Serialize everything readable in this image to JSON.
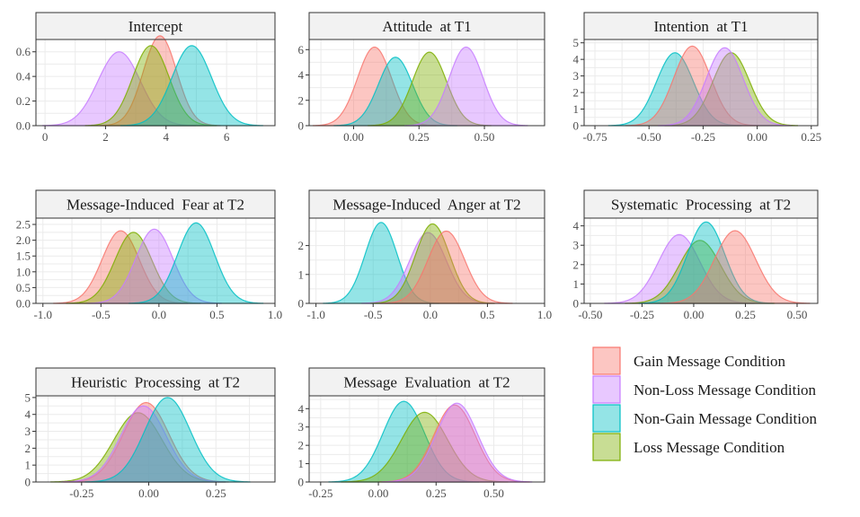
{
  "colors": {
    "gain": "#F8766D",
    "nonloss": "#C77CFF",
    "nongain": "#00BFC4",
    "loss": "#7CAE00",
    "panel_border": "#333333",
    "strip_fill": "#f2f2f2",
    "grid": "#ebebeb"
  },
  "legend": {
    "items": [
      {
        "key": "gain",
        "label": "Gain Message Condition"
      },
      {
        "key": "nonloss",
        "label": "Non-Loss Message Condition"
      },
      {
        "key": "nongain",
        "label": "Non-Gain Message Condition"
      },
      {
        "key": "loss",
        "label": "Loss Message Condition"
      }
    ]
  },
  "chart_data": [
    {
      "type": "area",
      "title": "Intercept",
      "xlim": [
        -0.3,
        7.6
      ],
      "ylim": [
        0,
        0.7
      ],
      "xticks": [
        0,
        2,
        4,
        6
      ],
      "xtick_labels": [
        "0",
        "2",
        "4",
        "6"
      ],
      "yticks": [
        0,
        0.2,
        0.4,
        0.6
      ],
      "ytick_labels": [
        "0.0",
        "0.2",
        "0.4",
        "0.6"
      ],
      "series": [
        {
          "key": "nonloss",
          "mean": 2.45,
          "sd": 0.7,
          "peak": 0.6
        },
        {
          "key": "gain",
          "mean": 3.8,
          "sd": 0.55,
          "peak": 0.73
        },
        {
          "key": "loss",
          "mean": 3.5,
          "sd": 0.6,
          "peak": 0.65
        },
        {
          "key": "nongain",
          "mean": 4.85,
          "sd": 0.65,
          "peak": 0.65
        }
      ]
    },
    {
      "type": "area",
      "title": "Attitude  at T1",
      "xlim": [
        -0.17,
        0.73
      ],
      "ylim": [
        0,
        6.8
      ],
      "xticks": [
        0,
        0.25,
        0.5
      ],
      "xtick_labels": [
        "0.00",
        "0.25",
        "0.50"
      ],
      "yticks": [
        0,
        2,
        4,
        6
      ],
      "ytick_labels": [
        "0",
        "2",
        "4",
        "6"
      ],
      "series": [
        {
          "key": "gain",
          "mean": 0.08,
          "sd": 0.065,
          "peak": 6.2
        },
        {
          "key": "nongain",
          "mean": 0.16,
          "sd": 0.065,
          "peak": 5.4
        },
        {
          "key": "loss",
          "mean": 0.29,
          "sd": 0.065,
          "peak": 5.8
        },
        {
          "key": "nonloss",
          "mean": 0.43,
          "sd": 0.065,
          "peak": 6.2
        }
      ]
    },
    {
      "type": "area",
      "title": "Intention  at T1",
      "xlim": [
        -0.8,
        0.28
      ],
      "ylim": [
        0,
        5.2
      ],
      "xticks": [
        -0.75,
        -0.5,
        -0.25,
        0,
        0.25
      ],
      "xtick_labels": [
        "-0.75",
        "-0.50",
        "-0.25",
        "0.00",
        "0.25"
      ],
      "yticks": [
        0,
        1,
        2,
        3,
        4,
        5
      ],
      "ytick_labels": [
        "0",
        "1",
        "2",
        "3",
        "4",
        "5"
      ],
      "series": [
        {
          "key": "nongain",
          "mean": -0.38,
          "sd": 0.085,
          "peak": 4.4
        },
        {
          "key": "gain",
          "mean": -0.3,
          "sd": 0.085,
          "peak": 4.8
        },
        {
          "key": "loss",
          "mean": -0.12,
          "sd": 0.085,
          "peak": 4.4
        },
        {
          "key": "nonloss",
          "mean": -0.15,
          "sd": 0.085,
          "peak": 4.7
        }
      ]
    },
    {
      "type": "area",
      "title": "Message-Induced  Fear at T2",
      "xlim": [
        -1.06,
        1.0
      ],
      "ylim": [
        0,
        2.7
      ],
      "xticks": [
        -1,
        -0.5,
        0,
        0.5,
        1
      ],
      "xtick_labels": [
        "-1.0",
        "-0.5",
        "0.0",
        "0.5",
        "1.0"
      ],
      "yticks": [
        0,
        0.5,
        1,
        1.5,
        2,
        2.5
      ],
      "ytick_labels": [
        "0.0",
        "0.5",
        "1.0",
        "1.5",
        "2.0",
        "2.5"
      ],
      "series": [
        {
          "key": "gain",
          "mean": -0.33,
          "sd": 0.16,
          "peak": 2.3
        },
        {
          "key": "loss",
          "mean": -0.22,
          "sd": 0.16,
          "peak": 2.25
        },
        {
          "key": "nonloss",
          "mean": -0.04,
          "sd": 0.16,
          "peak": 2.35
        },
        {
          "key": "nongain",
          "mean": 0.32,
          "sd": 0.16,
          "peak": 2.55
        }
      ]
    },
    {
      "type": "area",
      "title": "Message-Induced  Anger at T2",
      "xlim": [
        -1.06,
        1.0
      ],
      "ylim": [
        0,
        2.95
      ],
      "xticks": [
        -1,
        -0.5,
        0,
        0.5,
        1
      ],
      "xtick_labels": [
        "-1.0",
        "-0.5",
        "0.0",
        "0.5",
        "1.0"
      ],
      "yticks": [
        0,
        1,
        2
      ],
      "ytick_labels": [
        "0",
        "1",
        "2"
      ],
      "series": [
        {
          "key": "nongain",
          "mean": -0.43,
          "sd": 0.14,
          "peak": 2.8
        },
        {
          "key": "nonloss",
          "mean": -0.02,
          "sd": 0.16,
          "peak": 2.45
        },
        {
          "key": "loss",
          "mean": 0.02,
          "sd": 0.15,
          "peak": 2.75
        },
        {
          "key": "gain",
          "mean": 0.14,
          "sd": 0.16,
          "peak": 2.5
        }
      ]
    },
    {
      "type": "area",
      "title": "Systematic  Processing  at T2",
      "xlim": [
        -0.53,
        0.6
      ],
      "ylim": [
        0,
        4.4
      ],
      "xticks": [
        -0.5,
        -0.25,
        0,
        0.25,
        0.5
      ],
      "xtick_labels": [
        "-0.50",
        "-0.25",
        "0.00",
        "0.25",
        "0.50"
      ],
      "yticks": [
        0,
        1,
        2,
        3,
        4
      ],
      "ytick_labels": [
        "0",
        "1",
        "2",
        "3",
        "4"
      ],
      "series": [
        {
          "key": "nonloss",
          "mean": -0.07,
          "sd": 0.1,
          "peak": 3.55
        },
        {
          "key": "loss",
          "mean": 0.03,
          "sd": 0.1,
          "peak": 3.25
        },
        {
          "key": "nongain",
          "mean": 0.06,
          "sd": 0.09,
          "peak": 4.2
        },
        {
          "key": "gain",
          "mean": 0.2,
          "sd": 0.1,
          "peak": 3.75
        }
      ]
    },
    {
      "type": "area",
      "title": "Heuristic  Processing  at T2",
      "xlim": [
        -0.42,
        0.47
      ],
      "ylim": [
        0,
        5.1
      ],
      "xticks": [
        -0.25,
        0,
        0.25
      ],
      "xtick_labels": [
        "-0.25",
        "0.00",
        "0.25"
      ],
      "yticks": [
        0,
        1,
        2,
        3,
        4,
        5
      ],
      "ytick_labels": [
        "0",
        "1",
        "2",
        "3",
        "4",
        "5"
      ],
      "series": [
        {
          "key": "loss",
          "mean": -0.04,
          "sd": 0.09,
          "peak": 4.1
        },
        {
          "key": "gain",
          "mean": -0.01,
          "sd": 0.085,
          "peak": 4.7
        },
        {
          "key": "nonloss",
          "mean": -0.02,
          "sd": 0.085,
          "peak": 4.5
        },
        {
          "key": "nongain",
          "mean": 0.07,
          "sd": 0.085,
          "peak": 5.0
        }
      ]
    },
    {
      "type": "area",
      "title": "Message  Evaluation  at T2",
      "xlim": [
        -0.3,
        0.72
      ],
      "ylim": [
        0,
        4.7
      ],
      "xticks": [
        -0.25,
        0,
        0.25,
        0.5
      ],
      "xtick_labels": [
        "-0.25",
        "0.00",
        "0.25",
        "0.50"
      ],
      "yticks": [
        0,
        1,
        2,
        3,
        4
      ],
      "ytick_labels": [
        "0",
        "1",
        "2",
        "3",
        "4"
      ],
      "series": [
        {
          "key": "nongain",
          "mean": 0.11,
          "sd": 0.09,
          "peak": 4.4
        },
        {
          "key": "loss",
          "mean": 0.2,
          "sd": 0.1,
          "peak": 3.8
        },
        {
          "key": "gain",
          "mean": 0.33,
          "sd": 0.09,
          "peak": 4.2
        },
        {
          "key": "nonloss",
          "mean": 0.34,
          "sd": 0.09,
          "peak": 4.3
        }
      ]
    }
  ]
}
